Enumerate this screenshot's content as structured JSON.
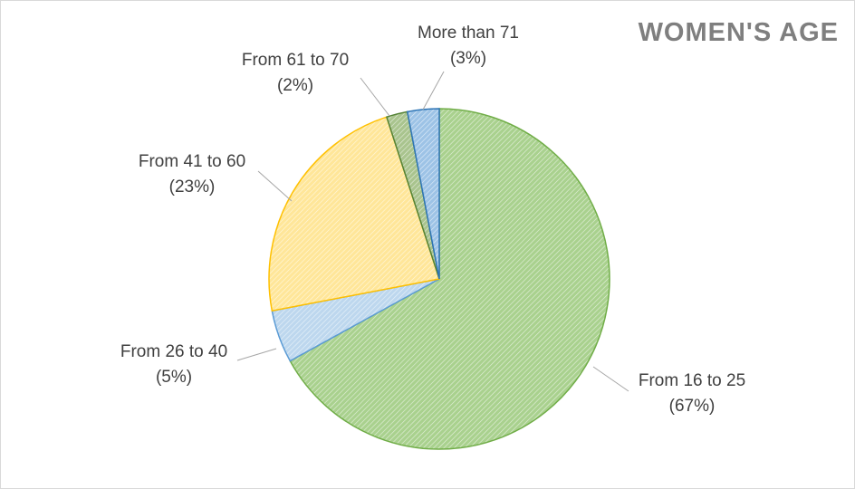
{
  "chart_data": {
    "type": "pie",
    "title": "WOMEN'S AGE",
    "start_angle_deg": 0,
    "direction": "clockwise",
    "slices": [
      {
        "label": "From 16 to 25",
        "pct_text": "(67%)",
        "value": 67,
        "color": "#a9d18e",
        "stroke": "#70ad47"
      },
      {
        "label": "From 26 to 40",
        "pct_text": "(5%)",
        "value": 5,
        "color": "#bdd7ee",
        "stroke": "#5b9bd5"
      },
      {
        "label": "From 41 to 60",
        "pct_text": "(23%)",
        "value": 23,
        "color": "#ffe699",
        "stroke": "#ffc000"
      },
      {
        "label": "From 61 to 70",
        "pct_text": "(2%)",
        "value": 2,
        "color": "#a9c48e",
        "stroke": "#548235"
      },
      {
        "label": "More than 71",
        "pct_text": "(3%)",
        "value": 3,
        "color": "#9dc3e6",
        "stroke": "#2e75b6"
      }
    ]
  }
}
